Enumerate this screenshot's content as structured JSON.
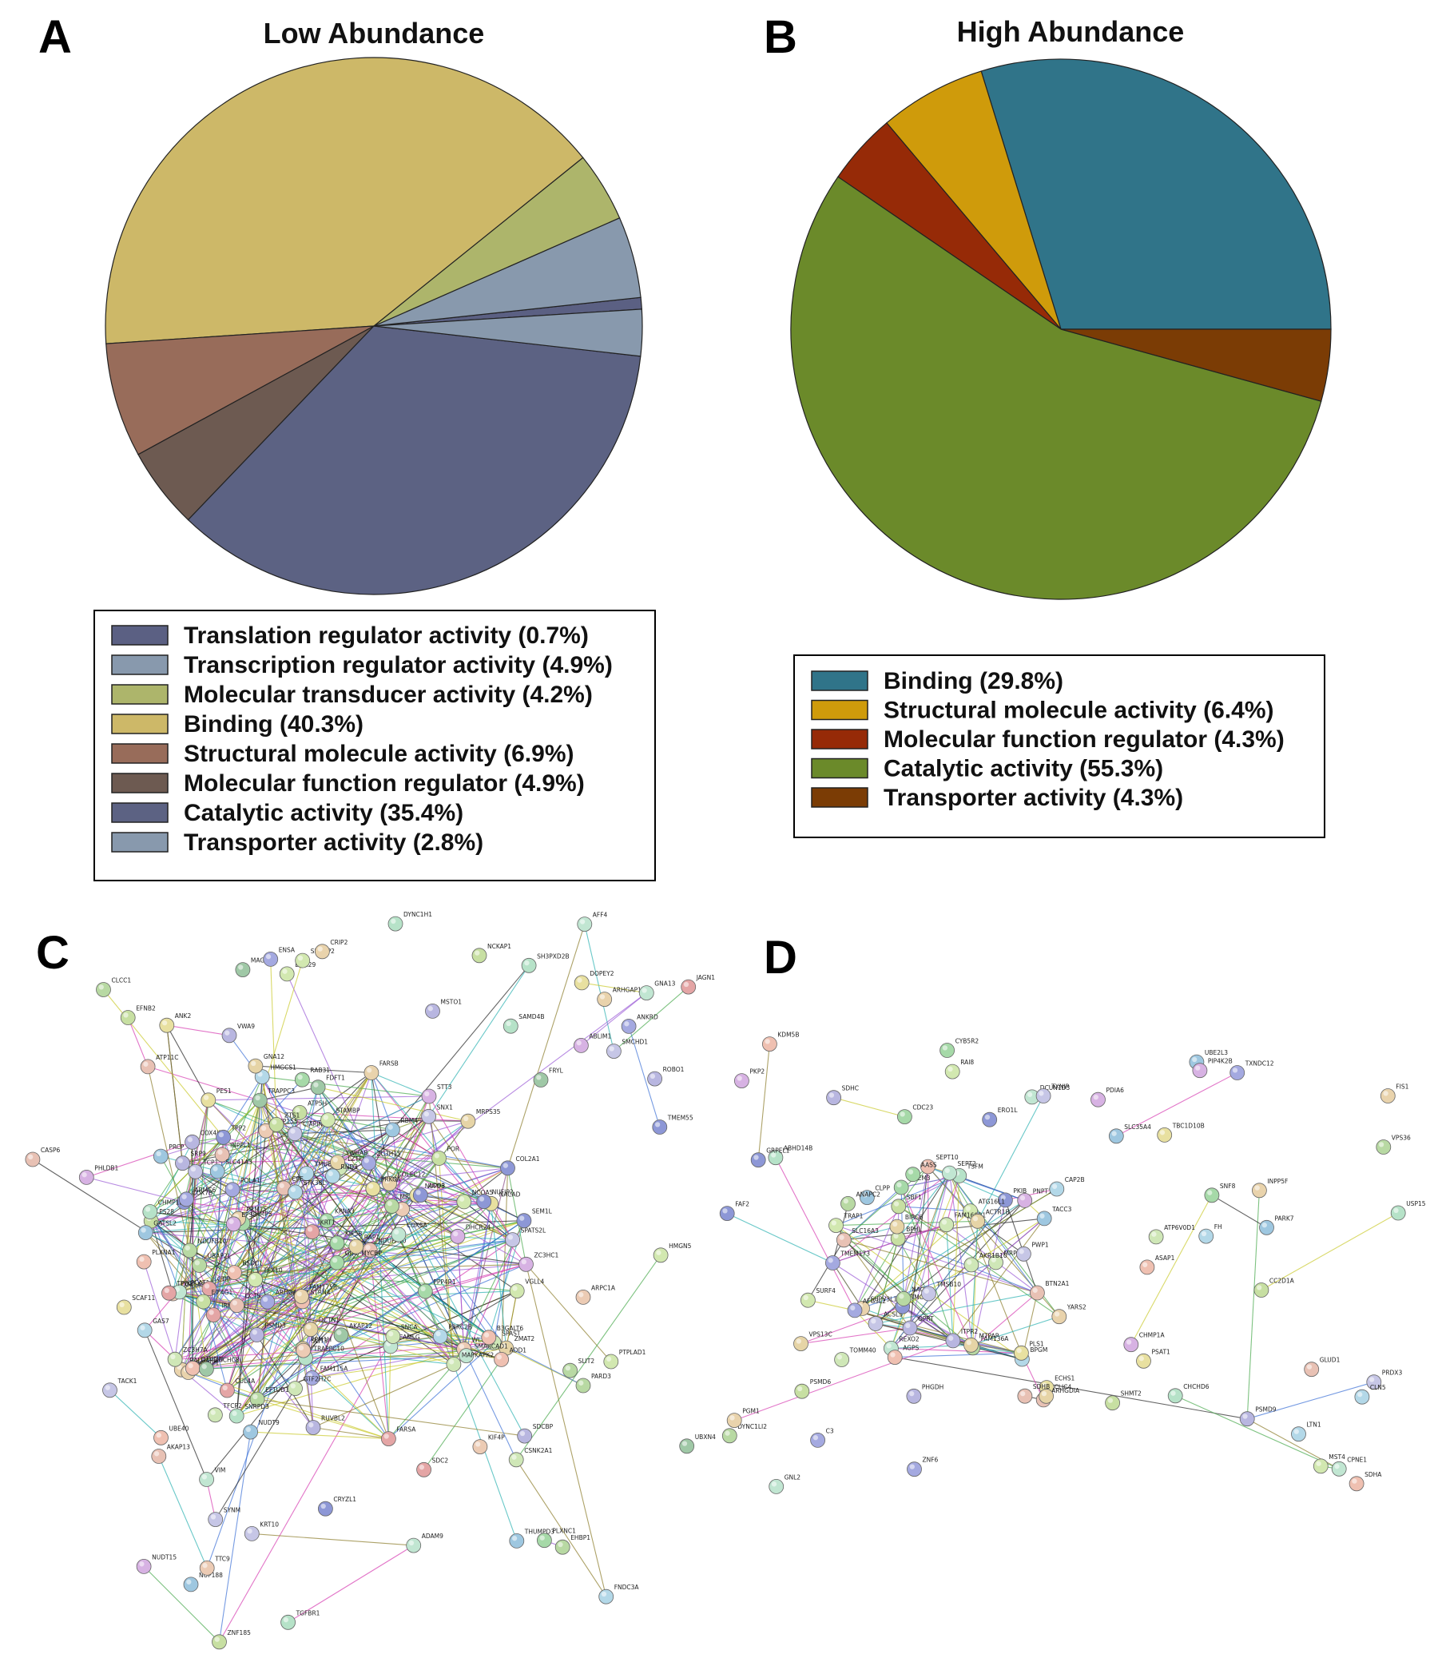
{
  "panels": {
    "a": "A",
    "b": "B",
    "c": "C",
    "d": "D"
  },
  "chart_data": [
    {
      "type": "pie",
      "title": "Low Abundance",
      "legend": "below",
      "slices": [
        {
          "label": "Translation regulator activity (0.7%)",
          "value": 0.7,
          "color": "#5b6083"
        },
        {
          "label": "Transcription regulator activity (4.9%)",
          "value": 4.9,
          "color": "#8899ad"
        },
        {
          "label": "Molecular transducer activity (4.2%)",
          "value": 4.2,
          "color": "#adb56b"
        },
        {
          "label": "Binding (40.3%)",
          "value": 40.3,
          "color": "#cdb868"
        },
        {
          "label": "Structural molecule activity (6.9%)",
          "value": 6.9,
          "color": "#986c5a"
        },
        {
          "label": "Molecular function regulator (4.9%)",
          "value": 4.9,
          "color": "#6d5a51"
        },
        {
          "label": "Catalytic activity (35.4%)",
          "value": 35.4,
          "color": "#5c6283"
        },
        {
          "label": "Transporter activity (2.8%)",
          "value": 2.8,
          "color": "#8899ad"
        }
      ]
    },
    {
      "type": "pie",
      "title": "High Abundance",
      "legend": "below",
      "slices": [
        {
          "label": "Binding (29.8%)",
          "value": 29.8,
          "color": "#307489"
        },
        {
          "label": "Structural molecule activity (6.4%)",
          "value": 6.4,
          "color": "#cf9b0b"
        },
        {
          "label": "Molecular function regulator (4.3%)",
          "value": 4.3,
          "color": "#962a07"
        },
        {
          "label": "Catalytic activity (55.3%)",
          "value": 55.3,
          "color": "#6b8a2a"
        },
        {
          "label": "Transporter activity (4.3%)",
          "value": 4.3,
          "color": "#7b3c05"
        }
      ]
    }
  ],
  "network_c": {
    "labels": [
      "NDUFA10",
      "COX7B",
      "CPOX",
      "NDUFB10",
      "COX4I1",
      "VGLL4",
      "COX5A",
      "ATP5H",
      "RALGAPB",
      "ZC3H7A",
      "SPATS2L",
      "IRF2BPL",
      "FAM115A",
      "TMUB2",
      "ZMAT2",
      "GJA9-MYCBP",
      "BSDC1",
      "PRCP",
      "ZC3HC1",
      "TRAPPC10",
      "NACAD",
      "TRAPPC3",
      "CPE",
      "COL2A1",
      "COL6A3",
      "EFTUD1",
      "SRP9",
      "TEX10",
      "LPCAT1",
      "PS28",
      "SCPEP1",
      "LZTFL1",
      "CIAPIN1",
      "CUL4A",
      "ZC3H15",
      "PRRC2B",
      "MRPS35",
      "CHMP5",
      "OTULIN",
      "RBM4",
      "STT3",
      "CHMP1B",
      "PES1",
      "ZCCHC8",
      "NRD1",
      "TPP2",
      "WLS",
      "MRPS7",
      "RUVBL2",
      "STAMBP",
      "CAMLG",
      "POR",
      "FARSB",
      "SPAST",
      "SNX1",
      "FARSA",
      "ARHGAP12",
      "HMGCS1",
      "RAP1",
      "KPNA3",
      "STRN4",
      "GATSL2",
      "DHCR24",
      "SNRPD3",
      "NUP98",
      "FDFT1",
      "CCT5",
      "SEM1L",
      "NUP155",
      "UBAP2L",
      "PSMD3",
      "NCOA5",
      "SMARCAD1",
      "ZTS1",
      "COLEC12",
      "MAPKAPK2",
      "TCP1",
      "CTIP",
      "POLA1",
      "STK38L",
      "DCTN1",
      "KIF5B",
      "ADD1",
      "NUP188",
      "PHLDB1",
      "DYNC1H1",
      "ANK2",
      "FRYL",
      "CASP6",
      "ACO3",
      "KIF4P",
      "CLCC1",
      "MSTO1",
      "DHX29",
      "VIM",
      "EIF4G1",
      "PRMT5",
      "CSNK2A1",
      "TACK1",
      "JAGN1",
      "ARMC6",
      "FNDC3A",
      "PPM1H",
      "RAB31",
      "UBE40",
      "THUMPD3",
      "EPS8",
      "TGFBR1",
      "SCAF11",
      "UBXN4",
      "INPPL1",
      "NUFIP2",
      "ARPC1A",
      "PARD3",
      "SDCBP",
      "HMGN5",
      "AFF4",
      "NCKAP1",
      "ARHGAP17",
      "SNCA",
      "SMCHD1",
      "SDC2",
      "ANKRD",
      "GAS7",
      "YWHAB",
      "PPP4R1",
      "B3GALT6",
      "SLC41A3",
      "ABLIM1",
      "SAMD4B",
      "PRKCA",
      "MAGED2",
      "ATP11C",
      "TMEM55",
      "TTC9",
      "EHBP1",
      "VWA9",
      "PTPLAD1",
      "GNA13",
      "EFNB2",
      "FAM175B",
      "TFCP2",
      "KRT10",
      "KRT1",
      "ENSA",
      "RND3",
      "GNA12",
      "PLXNC1",
      "PLXNA1",
      "NUDT9",
      "NUDT15",
      "SH3PXD2B",
      "DOPEY2",
      "AKAP12",
      "AKAP13",
      "CRYZL1",
      "SLIT3",
      "SLIT2",
      "ROBO1",
      "SRGAP2",
      "ADAM9",
      "ZNF185",
      "CRIP2",
      "GTF2H2C",
      "SYNM",
      "TPBG"
    ],
    "colors": [
      "#e8c1b4",
      "#8d97d6",
      "#eccbb4",
      "#b8d9a3",
      "#b8b6e0",
      "#d2e8b0",
      "#c1e6d2",
      "#c7dfa2",
      "#e9d3ac",
      "#cfe7b7",
      "#c6c6e6",
      "#e4a5a5",
      "#a4a9e0",
      "#b3d8e8",
      "#e6d4a6",
      "#a6d9a8",
      "#efc0b1",
      "#9ec7e0",
      "#d7b2e3",
      "#b6e2c8",
      "#e8e0a0",
      "#9fc8a6"
    ]
  },
  "network_d": {
    "labels": [
      "SLC16A3",
      "PKIB",
      "FAM136A",
      "ITPR2",
      "ATG16L1",
      "REXO2",
      "SBF1",
      "SUPV3L1",
      "FAM160B1",
      "ACSL3",
      "TMEM173",
      "BPGM",
      "MTPAP",
      "EDEM3",
      "SEPT10",
      "TACC3",
      "PNPT1",
      "TSFM",
      "PLS1",
      "BTN2A1",
      "TMOD3",
      "NAGLU",
      "QPRT",
      "TRAP1",
      "SEPT2",
      "BPHL",
      "YARS2",
      "MRPL46",
      "TMSB10",
      "AFG3L2",
      "CAP2B",
      "ACTR1B",
      "AASS",
      "SDHA",
      "CLPP",
      "PKP2",
      "ABHD14B",
      "ECHS1",
      "SDHB",
      "GRPEL1",
      "DYNC1LI2",
      "SDHC",
      "MST4",
      "GNL2",
      "SHMT2",
      "FIS1",
      "TOMM40",
      "PWP1",
      "ZNF6",
      "FH",
      "VPS13C",
      "SNF8",
      "AGPS",
      "PARK7",
      "CHMP1A",
      "CHCHD6",
      "PSAT1",
      "GLUD1",
      "FAF2",
      "VPS36",
      "PHGDH",
      "SURF4",
      "CPNE1",
      "CC2D1A",
      "PGM1",
      "ATP6V0D1",
      "PRDX3",
      "C3",
      "LTN1",
      "BIRC6",
      "CDC23",
      "KDM5B",
      "UBE2L3",
      "PDIA6",
      "USP15",
      "TBC1D10B",
      "ARHGDIA",
      "ERO1L",
      "ANAPC2",
      "PSMD9",
      "RAI8",
      "DCUN1D3",
      "PSMD6",
      "INPP5F",
      "AKR1B10",
      "TXNIP",
      "TXNDC12",
      "CLN5",
      "CLIC4",
      "CYB5R2",
      "ASAP1",
      "SLC35A4",
      "PIP4K2B"
    ],
    "colors": [
      "#e8c1b4",
      "#8d97d6",
      "#b8d9a3",
      "#b8b6e0",
      "#d2e8b0",
      "#c1e6d2",
      "#c7dfa2",
      "#e9d3ac",
      "#cfe7b7",
      "#c6c6e6",
      "#a4a9e0",
      "#b3d8e8",
      "#e6d4a6",
      "#a6d9a8",
      "#efc0b1",
      "#9ec7e0",
      "#d7b2e3",
      "#b6e2c8",
      "#e8e0a0"
    ]
  }
}
